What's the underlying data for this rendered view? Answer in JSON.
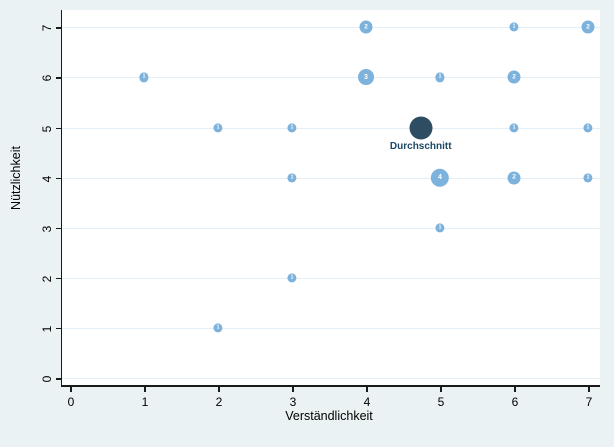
{
  "chart_data": {
    "type": "scatter",
    "subtype": "frequency-bubble",
    "title": "",
    "xlabel": "Verständlichkeit",
    "ylabel": "Nützlichkeit",
    "xlim": [
      0,
      7
    ],
    "ylim": [
      0,
      7
    ],
    "x_ticks": [
      "0",
      "1",
      "2",
      "3",
      "4",
      "5",
      "6",
      "7"
    ],
    "y_ticks": [
      "0",
      "1",
      "2",
      "3",
      "4",
      "5",
      "6",
      "7"
    ],
    "grid": "horizontal-only",
    "legend_position": "none",
    "points": [
      {
        "x": 1,
        "y": 6,
        "count": 1
      },
      {
        "x": 2,
        "y": 1,
        "count": 1
      },
      {
        "x": 2,
        "y": 5,
        "count": 1
      },
      {
        "x": 3,
        "y": 2,
        "count": 1
      },
      {
        "x": 3,
        "y": 4,
        "count": 1
      },
      {
        "x": 3,
        "y": 5,
        "count": 1
      },
      {
        "x": 4,
        "y": 6,
        "count": 3
      },
      {
        "x": 4,
        "y": 7,
        "count": 2
      },
      {
        "x": 5,
        "y": 3,
        "count": 1
      },
      {
        "x": 5,
        "y": 4,
        "count": 4
      },
      {
        "x": 5,
        "y": 6,
        "count": 1
      },
      {
        "x": 6,
        "y": 4,
        "count": 2
      },
      {
        "x": 6,
        "y": 5,
        "count": 1
      },
      {
        "x": 6,
        "y": 6,
        "count": 2
      },
      {
        "x": 6,
        "y": 7,
        "count": 1
      },
      {
        "x": 7,
        "y": 4,
        "count": 1
      },
      {
        "x": 7,
        "y": 5,
        "count": 1
      },
      {
        "x": 7,
        "y": 7,
        "count": 2
      }
    ],
    "mean_marker": {
      "x": 4.74,
      "y": 5.0,
      "label": "Durchschnitt"
    },
    "colors": {
      "background": "#eaf2f3",
      "plot_background": "#ffffff",
      "gridline": "#e4eef6",
      "axis": "#1a1a1a",
      "bubble_fill": "#7cb2dc",
      "bubble_text": "#ffffff",
      "mean_fill": "#2e4d63",
      "mean_label_text": "#1c4866",
      "tick_text": "#000000"
    }
  }
}
